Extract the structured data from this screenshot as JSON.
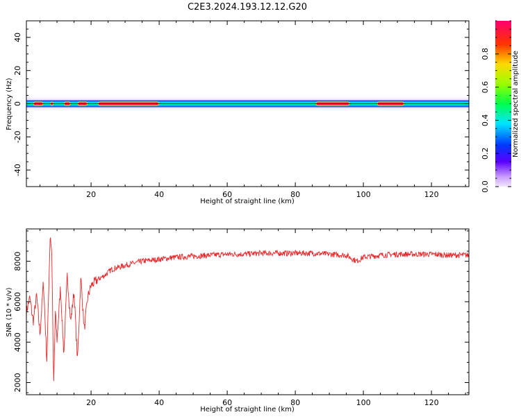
{
  "title": "C2E3.2024.193.12.12.G20",
  "top_panel": {
    "ylabel": "Frequency (Hz)",
    "xlabel": "Height of straight line (km)",
    "yticks": [
      "-40",
      "-20",
      "0",
      "20",
      "40"
    ],
    "xticks": [
      "20",
      "40",
      "60",
      "80",
      "100",
      "120"
    ]
  },
  "colorbar": {
    "label": "Normalized spectral amplitude",
    "ticks": [
      "0.0",
      "0.2",
      "0.4",
      "0.6",
      "0.8"
    ]
  },
  "bottom_panel": {
    "ylabel": "SNR (10 * v/v)",
    "xlabel": "Height of straight line (km)",
    "yticks": [
      "2000",
      "4000",
      "6000",
      "8000"
    ],
    "xticks": [
      "20",
      "40",
      "60",
      "80",
      "100",
      "120"
    ]
  },
  "colors": {
    "snr_line": "#e8282b"
  },
  "chart_data": [
    {
      "type": "heatmap",
      "title": "C2E3.2024.193.12.12.G20",
      "xlabel": "Height of straight line (km)",
      "ylabel": "Frequency (Hz)",
      "xlim": [
        1,
        131
      ],
      "ylim": [
        -50,
        50
      ],
      "colorbar_label": "Normalized spectral amplitude",
      "colorbar_range": [
        0,
        1
      ],
      "colormap": "gist_rainbow_r",
      "ridge_frequency_hz": 0,
      "peak_segments_km": [
        [
          3,
          6
        ],
        [
          8,
          9
        ],
        [
          12,
          14
        ],
        [
          16,
          19
        ],
        [
          22,
          40
        ],
        [
          86,
          96
        ],
        [
          104,
          112
        ]
      ]
    },
    {
      "type": "line",
      "xlabel": "Height of straight line (km)",
      "ylabel": "SNR (10 * v/v)",
      "xlim": [
        1,
        131
      ],
      "ylim": [
        1400,
        9600
      ],
      "series": [
        {
          "x": [
            1,
            2,
            3,
            4,
            5,
            6,
            7,
            8,
            8.5,
            9,
            9.5,
            10,
            11,
            12,
            13,
            14,
            15,
            16,
            17,
            18,
            19,
            20,
            22,
            24,
            26,
            28,
            30,
            35,
            40,
            45,
            50,
            55,
            60,
            65,
            70,
            75,
            80,
            85,
            90,
            95,
            98,
            100,
            105,
            110,
            115,
            120,
            125,
            131
          ],
          "y": [
            5500,
            6200,
            5000,
            6300,
            4400,
            7000,
            3100,
            9400,
            8200,
            1700,
            5500,
            4100,
            6700,
            3400,
            7300,
            5000,
            6500,
            3100,
            7200,
            4600,
            6200,
            6800,
            7100,
            7300,
            7600,
            7700,
            7800,
            8000,
            8100,
            8200,
            8250,
            8300,
            8350,
            8350,
            8400,
            8400,
            8400,
            8400,
            8350,
            8300,
            8000,
            8200,
            8300,
            8350,
            8350,
            8350,
            8300,
            8300
          ]
        }
      ]
    }
  ]
}
